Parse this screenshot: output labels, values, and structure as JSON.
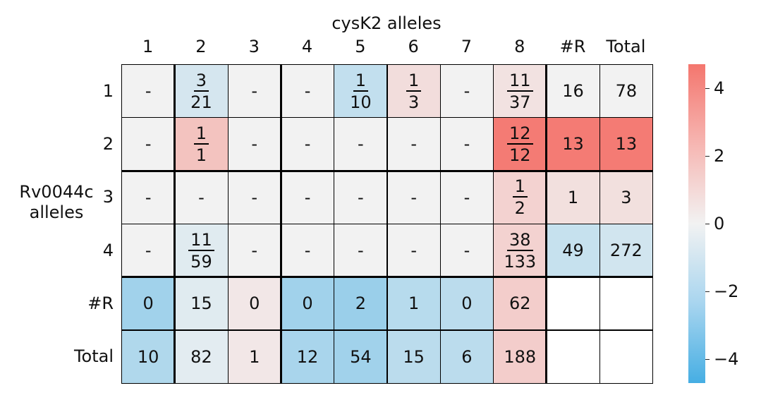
{
  "chart_data": {
    "type": "heatmap",
    "title": "cysK2 alleles",
    "xlabel": "cysK2 alleles",
    "ylabel": "Rv0044c\nalleles",
    "col_labels": [
      "1",
      "2",
      "3",
      "4",
      "5",
      "6",
      "7",
      "8",
      "#R",
      "Total"
    ],
    "row_labels": [
      "1",
      "2",
      "3",
      "4",
      "#R",
      "Total"
    ],
    "cells": [
      [
        "-",
        "3/21",
        "-",
        "-",
        "1/10",
        "1/3",
        "-",
        "11/37",
        "16",
        "78"
      ],
      [
        "-",
        "1/1",
        "-",
        "-",
        "-",
        "-",
        "-",
        "12/12",
        "13",
        "13"
      ],
      [
        "-",
        "-",
        "-",
        "-",
        "-",
        "-",
        "-",
        "1/2",
        "1",
        "3"
      ],
      [
        "-",
        "11/59",
        "-",
        "-",
        "-",
        "-",
        "-",
        "38/133",
        "49",
        "272"
      ],
      [
        "0",
        "15",
        "0",
        "0",
        "2",
        "1",
        "0",
        "62",
        "",
        ""
      ],
      [
        "10",
        "82",
        "1",
        "12",
        "54",
        "15",
        "6",
        "188",
        "",
        ""
      ]
    ],
    "values": [
      [
        0,
        -0.8,
        0,
        0,
        -1.3,
        0.8,
        0,
        0.6,
        0,
        0
      ],
      [
        0,
        1.8,
        0,
        0,
        0,
        0,
        0,
        4.5,
        4.5,
        4.5
      ],
      [
        0,
        0,
        0,
        0,
        0,
        0,
        0,
        1.2,
        0.7,
        0.7
      ],
      [
        0,
        -0.5,
        0,
        0,
        0,
        0,
        0,
        1.2,
        -1.2,
        -0.9
      ],
      [
        -2.2,
        -0.5,
        0.4,
        -2.2,
        -2.4,
        -1.6,
        -1.5,
        1.4,
        null,
        null
      ],
      [
        -1.8,
        -0.4,
        0.4,
        -2.0,
        -2.2,
        -1.5,
        -1.5,
        1.4,
        null,
        null
      ]
    ],
    "colorbar": {
      "min": -4.7,
      "max": 4.7,
      "ticks": [
        "4",
        "2",
        "0",
        "−2",
        "−4"
      ]
    },
    "colors": {
      "high": "#f4766e",
      "mid": "#f2f2f2",
      "low": "#46aee3",
      "empty": "#ffffff"
    }
  }
}
